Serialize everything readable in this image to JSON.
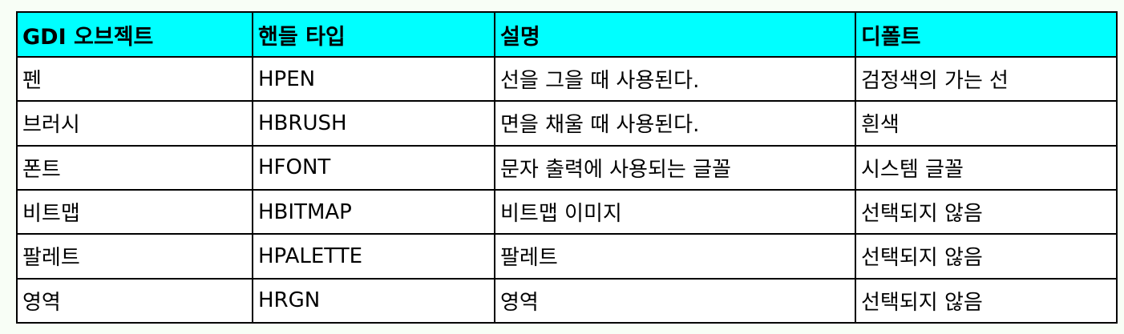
{
  "table": {
    "headers": [
      "GDI 오브젝트",
      "핸들 타입",
      "설명",
      "디폴트"
    ],
    "rows": [
      [
        "펜",
        "HPEN",
        "선을 그을 때 사용된다.",
        "검정색의 가는 선"
      ],
      [
        "브러시",
        "HBRUSH",
        "면을 채울 때 사용된다.",
        "흰색"
      ],
      [
        "폰트",
        "HFONT",
        "문자 출력에 사용되는 글꼴",
        "시스템 글꼴"
      ],
      [
        "비트맵",
        "HBITMAP",
        "비트맵 이미지",
        "선택되지 않음"
      ],
      [
        "팔레트",
        "HPALETTE",
        "팔레트",
        "선택되지 않음"
      ],
      [
        "영역",
        "HRGN",
        "영역",
        "선택되지 않음"
      ]
    ]
  },
  "colors": {
    "header_bg": "#00ffff",
    "page_bg": "#f8fef6",
    "cell_bg": "#ffffff",
    "border": "#000000"
  }
}
